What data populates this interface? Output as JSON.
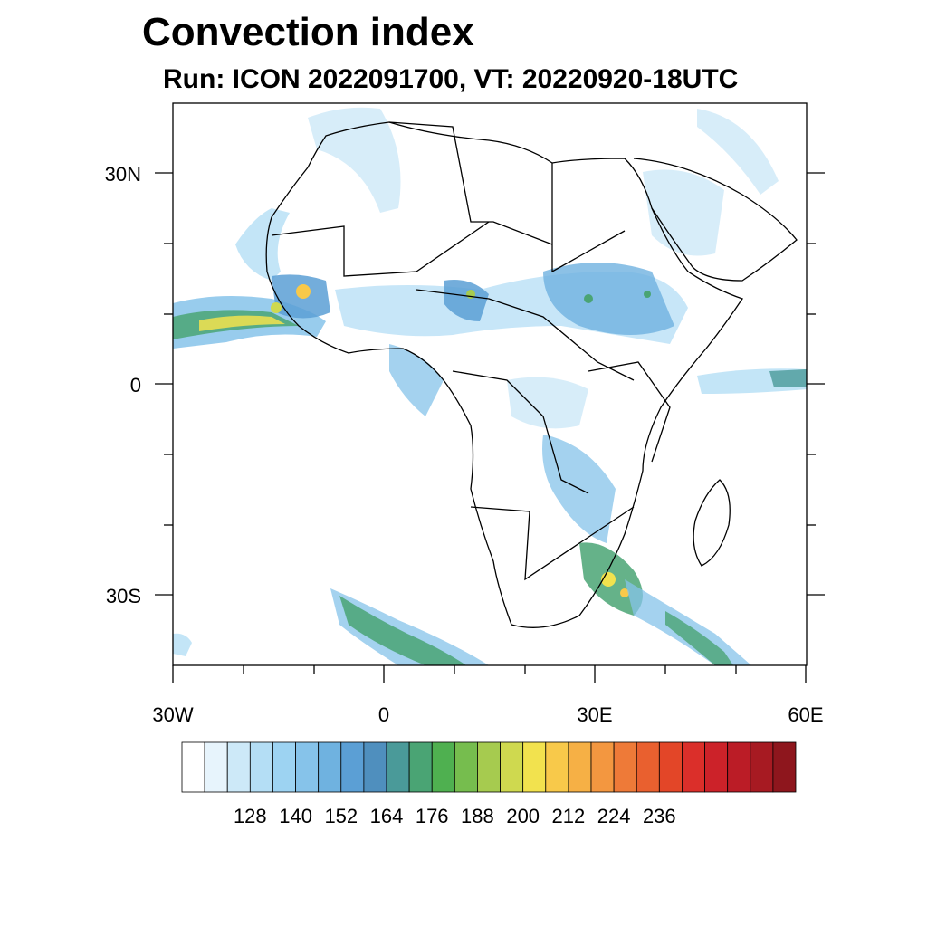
{
  "title": "Convection index",
  "subtitle": "Run: ICON 2022091700,  VT: 20220920-18UTC",
  "axes": {
    "lat_labels": [
      "30N",
      "0",
      "30S"
    ],
    "lon_labels": [
      "30W",
      "0",
      "30E",
      "60E"
    ]
  },
  "colorbar": {
    "colors": [
      "#ffffff",
      "#e7f4fc",
      "#cde9f8",
      "#b4def5",
      "#9dd3f2",
      "#86c3ea",
      "#6fb2e0",
      "#5b9fd5",
      "#4f8fbe",
      "#4a9a99",
      "#4aa474",
      "#4fb050",
      "#76bd4e",
      "#a6cb4f",
      "#cfd94f",
      "#f2e24e",
      "#f8c94a",
      "#f6b045",
      "#f39740",
      "#ee7a38",
      "#e9602f",
      "#e34628",
      "#db2f2a",
      "#cc2229",
      "#bb1c26",
      "#a71a22",
      "#8e161d"
    ],
    "labels": [
      "128",
      "140",
      "152",
      "164",
      "176",
      "188",
      "200",
      "212",
      "224",
      "236"
    ]
  },
  "map": {
    "extent": "30W-60E, 40S-40N",
    "content": "Convection index field over Africa"
  }
}
